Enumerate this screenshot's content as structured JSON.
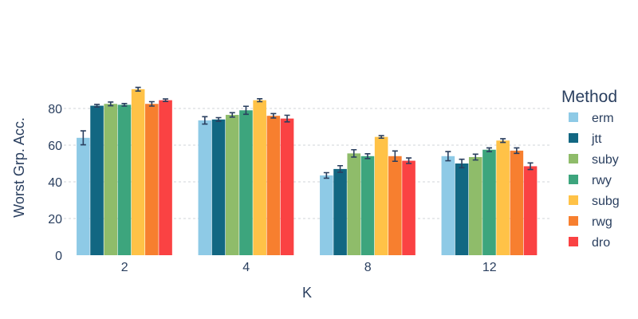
{
  "chart_data": {
    "type": "bar",
    "xlabel": "K",
    "ylabel": "Worst Grp. Acc.",
    "ylim": [
      0,
      100
    ],
    "yticks": [
      0,
      20,
      40,
      60,
      80
    ],
    "grid": true,
    "legend_title": "Method",
    "legend_position": "right",
    "categories": [
      "2",
      "4",
      "8",
      "12"
    ],
    "series": [
      {
        "name": "erm",
        "color": "#8ecae6",
        "values": [
          64.0,
          73.5,
          43.5,
          54.0
        ],
        "errors": [
          3.8,
          2.0,
          1.5,
          2.5
        ]
      },
      {
        "name": "jtt",
        "color": "#126782",
        "values": [
          81.5,
          74.0,
          47.0,
          50.0
        ],
        "errors": [
          0.7,
          1.0,
          1.8,
          2.3
        ]
      },
      {
        "name": "suby",
        "color": "#8fbc6a",
        "values": [
          82.5,
          76.5,
          55.5,
          53.5
        ],
        "errors": [
          1.0,
          1.2,
          2.0,
          1.6
        ]
      },
      {
        "name": "rwy",
        "color": "#3da57d",
        "values": [
          82.0,
          79.0,
          54.0,
          57.5
        ],
        "errors": [
          0.7,
          2.2,
          1.3,
          1.0
        ]
      },
      {
        "name": "subg",
        "color": "#ffc247",
        "values": [
          90.5,
          84.5,
          64.5,
          62.5
        ],
        "errors": [
          1.0,
          0.8,
          0.7,
          1.0
        ]
      },
      {
        "name": "rwg",
        "color": "#f77f2f",
        "values": [
          82.5,
          76.0,
          54.0,
          57.0
        ],
        "errors": [
          1.2,
          1.2,
          2.8,
          1.5
        ]
      },
      {
        "name": "dro",
        "color": "#fa4243",
        "values": [
          84.5,
          74.5,
          51.5,
          48.5
        ],
        "errors": [
          0.7,
          1.8,
          1.5,
          1.8
        ]
      }
    ]
  }
}
